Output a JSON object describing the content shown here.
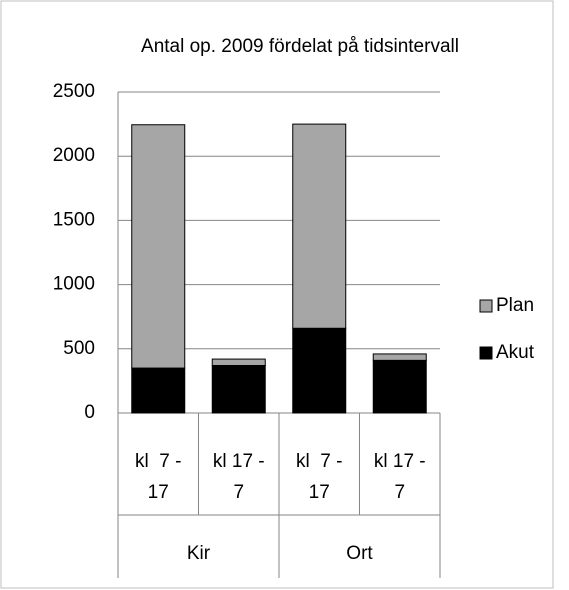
{
  "chart_data": {
    "type": "stacked_bar",
    "title": "Antal op. 2009 fördelat på tidsintervall",
    "categories": [
      "kl  7 - 17",
      "kl 17 - 7",
      "kl  7 - 17",
      "kl 17 - 7"
    ],
    "groups": [
      "Kir",
      "Ort"
    ],
    "series": [
      {
        "name": "Akut",
        "color": "#000000",
        "values": [
          350,
          370,
          660,
          410
        ]
      },
      {
        "name": "Plan",
        "color": "#a6a6a6",
        "values": [
          1895,
          50,
          1590,
          50
        ]
      }
    ],
    "ylim": [
      0,
      2500
    ],
    "yticks": [
      0,
      500,
      1000,
      1500,
      2000,
      2500
    ],
    "grid": true,
    "legend": "right"
  }
}
